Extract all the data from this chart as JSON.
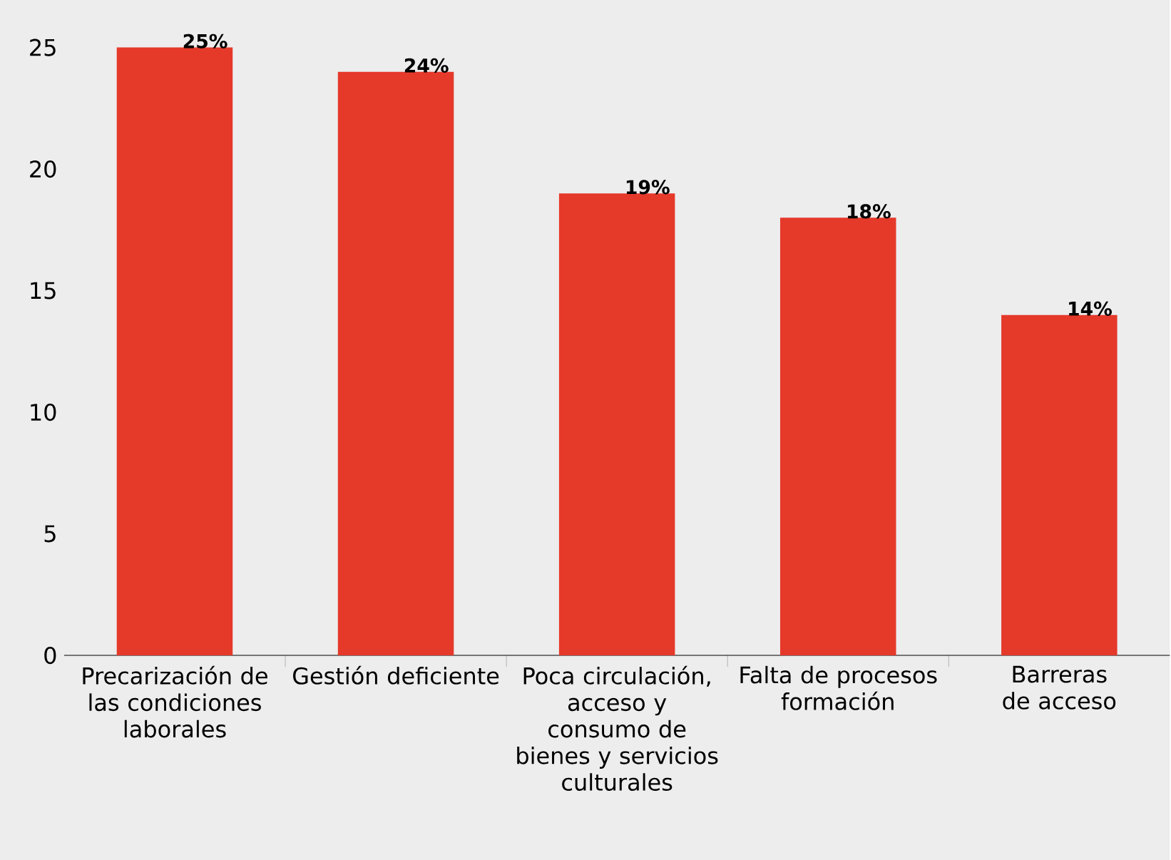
{
  "chart_data": {
    "type": "bar",
    "categories": [
      "Precarización de las condiciones laborales",
      "Gestión deficiente",
      "Poca circulación, acceso y consumo de bienes y servicios culturales",
      "Falta de procesos formación",
      "Barreras de acceso"
    ],
    "values": [
      25,
      24,
      19,
      18,
      14
    ],
    "value_labels": [
      "25%",
      "24%",
      "19%",
      "18%",
      "14%"
    ],
    "color": "#e5392a",
    "ylim": [
      0,
      25
    ],
    "yticks": [
      0,
      5,
      10,
      15,
      20,
      25
    ],
    "grid": false
  }
}
